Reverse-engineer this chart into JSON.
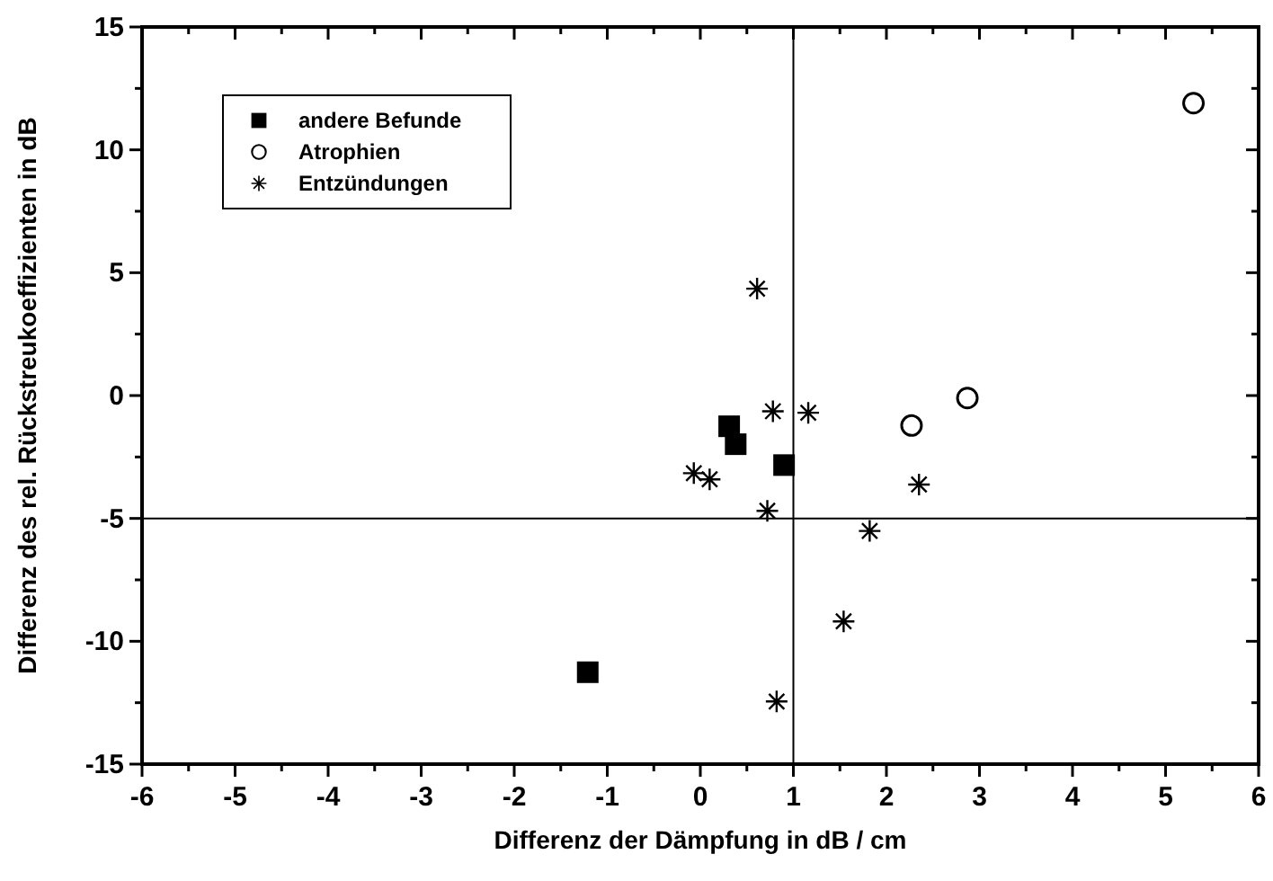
{
  "chart_data": {
    "type": "scatter",
    "xlabel": "Differenz der Dämpfung in dB / cm",
    "ylabel": "Differenz des rel. Rückstreukoeffizienten in dB",
    "xlim": [
      -6,
      6
    ],
    "ylim": [
      -15,
      15
    ],
    "xticks": [
      -6,
      {
        "value": -5.5,
        "label": null
      },
      -5,
      {
        "value": -4.5,
        "label": null
      },
      -4,
      {
        "value": -3.5,
        "label": null
      },
      -3,
      {
        "value": -2.5,
        "label": null
      },
      -2,
      {
        "value": -1.5,
        "label": null
      },
      -1,
      {
        "value": -0.5,
        "label": null
      },
      0,
      {
        "value": 0.5,
        "label": null
      },
      1,
      {
        "value": 1.5,
        "label": null
      },
      2,
      {
        "value": 2.5,
        "label": null
      },
      3,
      {
        "value": 3.5,
        "label": null
      },
      4,
      {
        "value": 4.5,
        "label": null
      },
      5,
      {
        "value": 5.5,
        "label": null
      },
      6
    ],
    "yticks": [
      -15,
      {
        "value": -12.5,
        "label": null
      },
      -10,
      {
        "value": -7.5,
        "label": null
      },
      -5,
      {
        "value": -2.5,
        "label": null
      },
      0,
      {
        "value": 2.5,
        "label": null
      },
      5,
      {
        "value": 7.5,
        "label": null
      },
      10,
      {
        "value": 12.5,
        "label": null
      },
      15
    ],
    "grid": false,
    "legend": "top left",
    "ref_lines": [
      {
        "axis": "x",
        "value": 1,
        "color": "#000000"
      },
      {
        "axis": "y",
        "value": -5,
        "color": "#000000"
      }
    ],
    "series": [
      {
        "name": "andere Befunde",
        "color": "#000000",
        "marker": "square",
        "x": [
          0.31,
          0.38,
          0.9,
          -1.21
        ],
        "values": [
          -1.25,
          -1.98,
          -2.83,
          -11.26
        ]
      },
      {
        "name": "Atrophien",
        "color": "#000000",
        "marker": "circle",
        "x": [
          5.3,
          2.87,
          2.27
        ],
        "values": [
          11.9,
          -0.1,
          -1.22
        ]
      },
      {
        "name": "Entzündungen",
        "color": "#000000",
        "marker": "cross",
        "x": [
          0.61,
          0.78,
          1.16,
          -0.07,
          0.1,
          0.72,
          2.35,
          1.82,
          1.54,
          0.82
        ],
        "values": [
          4.35,
          -0.64,
          -0.7,
          -3.16,
          -3.41,
          -4.69,
          -3.62,
          -5.51,
          -9.19,
          -12.45
        ]
      }
    ]
  }
}
